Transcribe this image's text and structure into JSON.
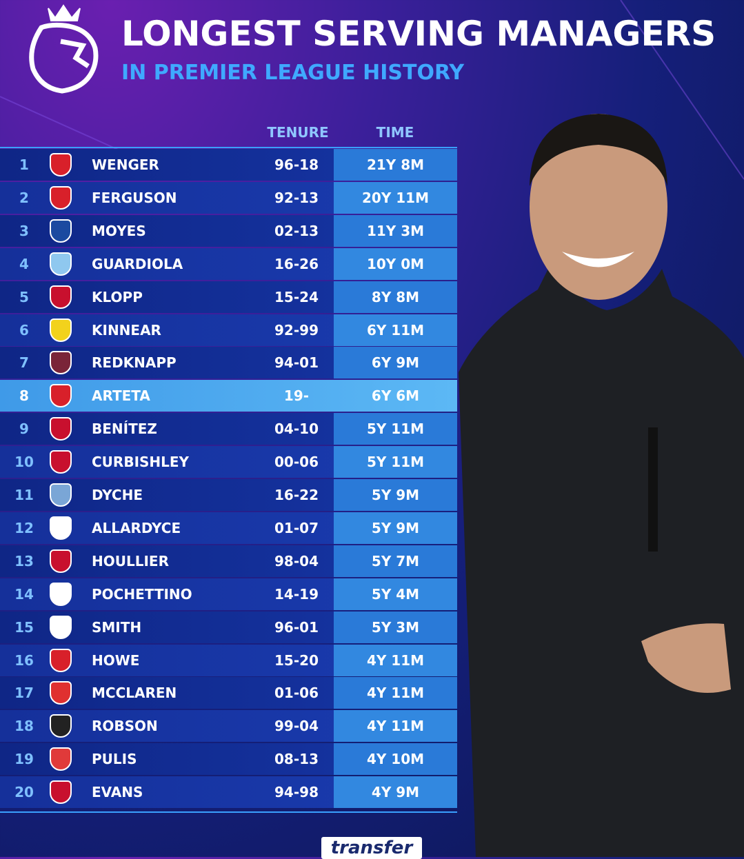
{
  "header": {
    "title": "LONGEST SERVING MANAGERS",
    "subtitle": "IN PREMIER LEAGUE HISTORY"
  },
  "table": {
    "columns": [
      "TENURE",
      "TIME"
    ],
    "rows": [
      [
        "1",
        "WENGER",
        "96-18",
        "21Y 8M"
      ],
      [
        "2",
        "FERGUSON",
        "92-13",
        "20Y 11M"
      ],
      [
        "3",
        "MOYES",
        "02-13",
        "11Y 3M"
      ],
      [
        "4",
        "GUARDIOLA",
        "16-26",
        "10Y 0M"
      ],
      [
        "5",
        "KLOPP",
        "15-24",
        "8Y 8M"
      ],
      [
        "6",
        "KINNEAR",
        "92-99",
        "6Y 11M"
      ],
      [
        "7",
        "REDKNAPP",
        "94-01",
        "6Y 9M"
      ],
      [
        "8",
        "ARTETA",
        "19-",
        "6Y 6M"
      ],
      [
        "9",
        "BENÍTEZ",
        "04-10",
        "5Y 11M"
      ],
      [
        "10",
        "CURBISHLEY",
        "00-06",
        "5Y 11M"
      ],
      [
        "11",
        "DYCHE",
        "16-22",
        "5Y 9M"
      ],
      [
        "12",
        "ALLARDYCE",
        "01-07",
        "5Y 9M"
      ],
      [
        "13",
        "HOULLIER",
        "98-04",
        "5Y 7M"
      ],
      [
        "14",
        "POCHETTINO",
        "14-19",
        "5Y 4M"
      ],
      [
        "15",
        "SMITH",
        "96-01",
        "5Y 3M"
      ],
      [
        "16",
        "HOWE",
        "15-20",
        "4Y 11M"
      ],
      [
        "17",
        "MCCLAREN",
        "01-06",
        "4Y 11M"
      ],
      [
        "18",
        "ROBSON",
        "99-04",
        "4Y 11M"
      ],
      [
        "19",
        "PULIS",
        "08-13",
        "4Y 10M"
      ],
      [
        "20",
        "EVANS",
        "94-98",
        "4Y 9M"
      ]
    ]
  },
  "footer": {
    "brand": "transfer"
  }
}
